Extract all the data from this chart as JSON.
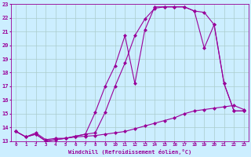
{
  "xlabel": "Windchill (Refroidissement éolien,°C)",
  "bg_color": "#cceeff",
  "grid_color": "#aacccc",
  "line_color": "#990099",
  "xlim": [
    -0.5,
    23.5
  ],
  "ylim": [
    13,
    23
  ],
  "xticks": [
    0,
    1,
    2,
    3,
    4,
    5,
    6,
    7,
    8,
    9,
    10,
    11,
    12,
    13,
    14,
    15,
    16,
    17,
    18,
    19,
    20,
    21,
    22,
    23
  ],
  "yticks": [
    13,
    14,
    15,
    16,
    17,
    18,
    19,
    20,
    21,
    22,
    23
  ],
  "line1_x": [
    0,
    1,
    2,
    3,
    4,
    5,
    6,
    7,
    8,
    9,
    10,
    11,
    12,
    13,
    14,
    15,
    16,
    17,
    18,
    19,
    20,
    21,
    22,
    23
  ],
  "line1_y": [
    13.7,
    13.3,
    13.6,
    13.1,
    13.2,
    13.2,
    13.3,
    13.35,
    13.4,
    13.5,
    13.6,
    13.7,
    13.9,
    14.1,
    14.3,
    14.5,
    14.7,
    15.0,
    15.2,
    15.3,
    15.4,
    15.5,
    15.6,
    15.3
  ],
  "line2_x": [
    0,
    1,
    2,
    3,
    4,
    5,
    6,
    7,
    8,
    9,
    10,
    11,
    12,
    13,
    14,
    15,
    16,
    17,
    18,
    19,
    20,
    21,
    22,
    23
  ],
  "line2_y": [
    13.7,
    13.3,
    13.5,
    13.0,
    13.1,
    13.2,
    13.35,
    13.5,
    13.6,
    15.1,
    17.0,
    18.7,
    20.7,
    21.9,
    22.7,
    22.8,
    22.8,
    22.8,
    22.5,
    22.4,
    21.5,
    17.2,
    15.2,
    15.2
  ],
  "line3_x": [
    0,
    1,
    2,
    3,
    4,
    5,
    6,
    7,
    8,
    9,
    10,
    11,
    12,
    13,
    14,
    15,
    16,
    17,
    18,
    19,
    20,
    21,
    22,
    23
  ],
  "line3_y": [
    13.7,
    13.3,
    13.5,
    13.0,
    13.1,
    13.2,
    13.35,
    13.5,
    15.1,
    17.0,
    18.5,
    20.7,
    17.2,
    21.1,
    22.8,
    22.8,
    22.8,
    22.8,
    22.5,
    19.8,
    21.5,
    17.2,
    15.2,
    15.2
  ],
  "marker": "D",
  "markersize": 2,
  "linewidth": 0.8
}
